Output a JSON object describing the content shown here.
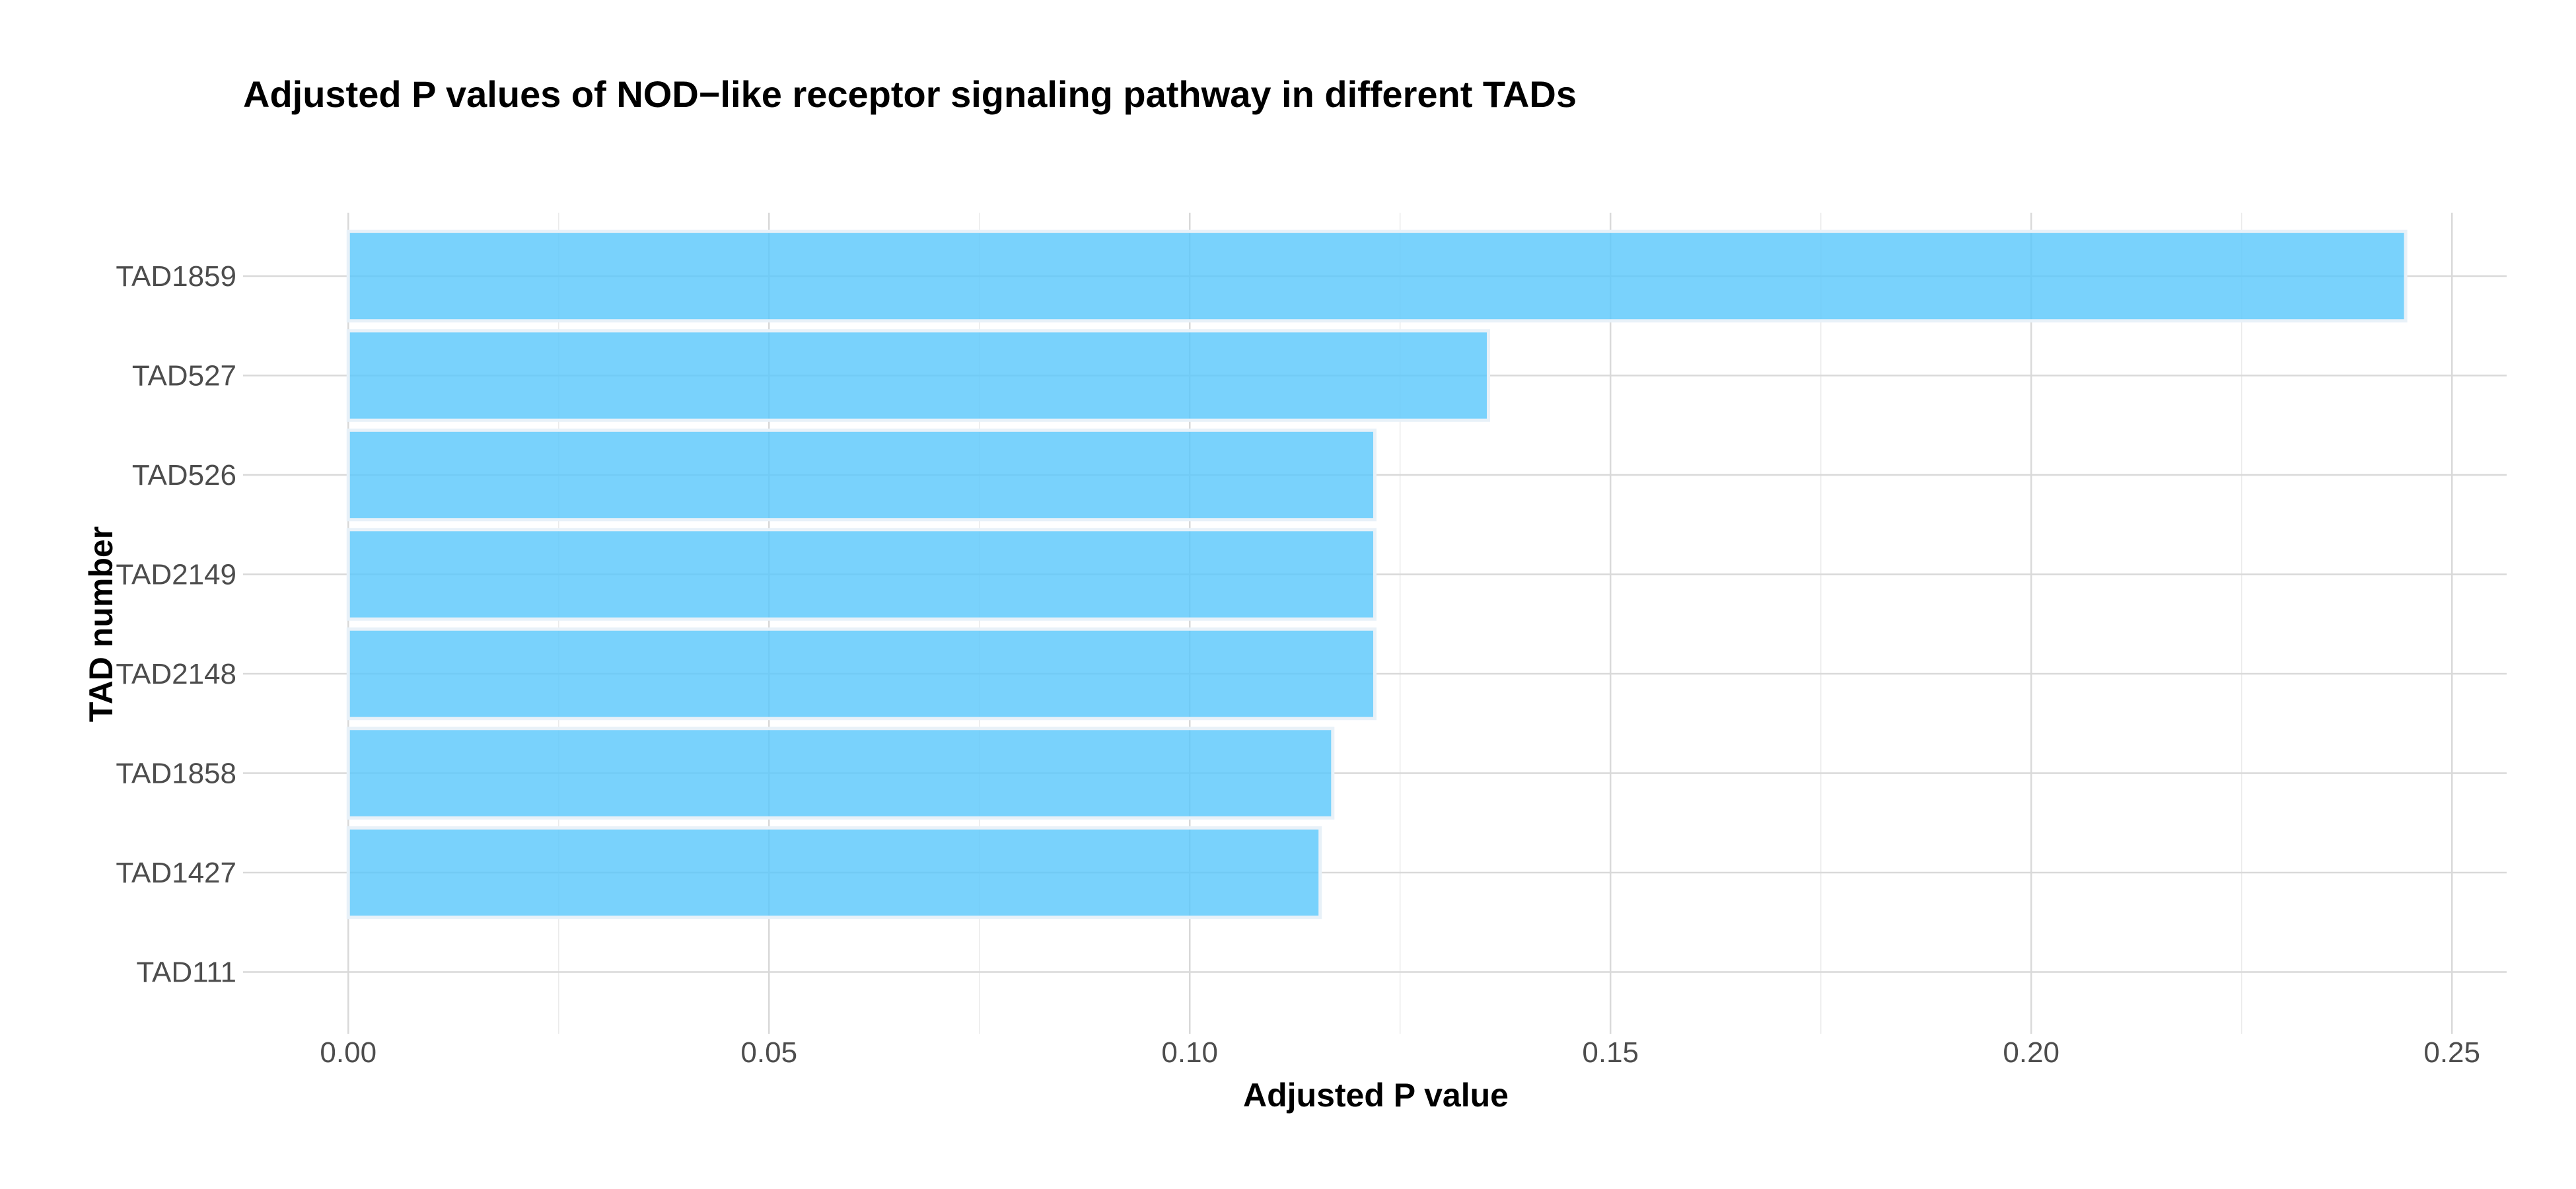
{
  "chart_data": {
    "type": "bar",
    "orientation": "horizontal",
    "title": "Adjusted P values of NOD−like receptor signaling pathway in different TADs",
    "xlabel": "Adjusted P value",
    "ylabel": "TAD number",
    "categories": [
      "TAD1859",
      "TAD527",
      "TAD526",
      "TAD2149",
      "TAD2148",
      "TAD1858",
      "TAD1427",
      "TAD111"
    ],
    "values": [
      0.2445,
      0.1355,
      0.122,
      0.122,
      0.122,
      0.117,
      0.1155,
      0
    ],
    "xlim": [
      -0.0125,
      0.2565
    ],
    "x_ticks": [
      0.0,
      0.05,
      0.1,
      0.15,
      0.2,
      0.25
    ],
    "x_tick_labels": [
      "0.00",
      "0.05",
      "0.10",
      "0.15",
      "0.20",
      "0.25"
    ],
    "grid": true,
    "bar_color": "#5bc8fb"
  }
}
